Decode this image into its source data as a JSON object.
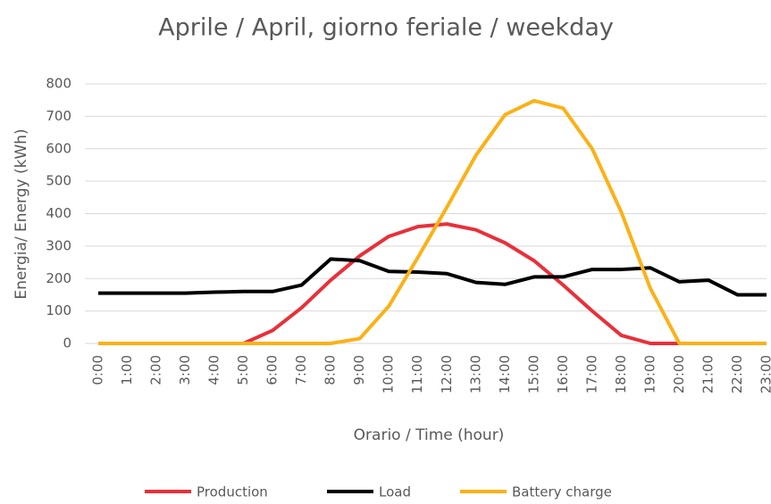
{
  "chart_data": {
    "type": "line",
    "title": "Aprile / April, giorno feriale / weekday",
    "x_label": "Orario / Time (hour)",
    "y_label": "Energia/ Energy (kWh)",
    "categories": [
      "0:00",
      "1:00",
      "2:00",
      "3:00",
      "4:00",
      "5:00",
      "6:00",
      "7:00",
      "8:00",
      "9:00",
      "10:00",
      "11:00",
      "12:00",
      "13:00",
      "14:00",
      "15:00",
      "16:00",
      "17:00",
      "18:00",
      "19:00",
      "20:00",
      "21:00",
      "22:00",
      "23:00"
    ],
    "series": [
      {
        "name": "Production",
        "color": "#e8303a",
        "values": [
          0,
          0,
          0,
          0,
          0,
          0,
          40,
          110,
          195,
          270,
          330,
          360,
          368,
          350,
          310,
          255,
          180,
          100,
          25,
          0,
          0,
          0,
          0,
          0
        ]
      },
      {
        "name": "Load",
        "color": "#000000",
        "values": [
          155,
          155,
          155,
          155,
          158,
          160,
          160,
          180,
          260,
          255,
          222,
          220,
          215,
          188,
          182,
          205,
          205,
          228,
          228,
          233,
          190,
          195,
          150,
          150
        ]
      },
      {
        "name": "Battery charge",
        "color": "#fbb117",
        "values": [
          0,
          0,
          0,
          0,
          0,
          0,
          0,
          0,
          0,
          15,
          115,
          265,
          420,
          580,
          705,
          748,
          725,
          600,
          405,
          170,
          0,
          0,
          0,
          0
        ]
      }
    ],
    "ylim": [
      0,
      800
    ],
    "yticks": [
      0,
      100,
      200,
      300,
      400,
      500,
      600,
      700,
      800
    ],
    "grid": true,
    "legend": "bottom"
  }
}
